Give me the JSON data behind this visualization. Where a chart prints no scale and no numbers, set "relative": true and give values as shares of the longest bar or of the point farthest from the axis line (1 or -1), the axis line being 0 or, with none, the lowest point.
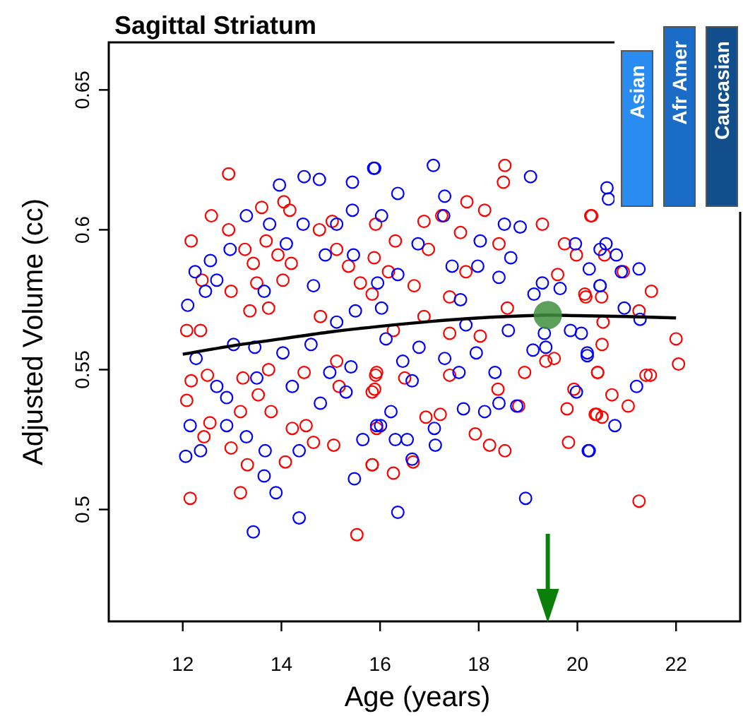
{
  "chart_data": [
    {
      "type": "scatter",
      "title": "Sagittal Striatum",
      "xlabel": "Age (years)",
      "ylabel": "Adjusted Volume (cc)",
      "xlim": [
        10.5,
        23.3
      ],
      "ylim": [
        0.46,
        0.667
      ],
      "xticks": [
        12,
        14,
        16,
        18,
        20,
        22
      ],
      "yticks": [
        0.5,
        0.55,
        0.6,
        0.65
      ],
      "grid": false,
      "marker": "circle",
      "series": [
        {
          "color": "#ff0000",
          "x": [
            12.93,
            12.58,
            12.17,
            13.6,
            14.05,
            14.17,
            12.93,
            13.69,
            13.26,
            13.43,
            13.93,
            14.2,
            15.03,
            14.77,
            12.39,
            13.5,
            14.03,
            15.12,
            15.36,
            15.6,
            12.98,
            12.08,
            12.36,
            13.36,
            13.74,
            14.79,
            12.17,
            12.5,
            13.22,
            13.74,
            14.46,
            15.12,
            15.93,
            12.08,
            12.55,
            13.17,
            13.79,
            14.22,
            14.5,
            12.43,
            12.98,
            13.31,
            13.17,
            14.08,
            14.65,
            15.06,
            15.84,
            15.53,
            12.15,
            13.53,
            15.17,
            15.89,
            18.53,
            18.5,
            17.76,
            17.25,
            18.12,
            16.89,
            15.91,
            19.29,
            20.27,
            17.63,
            16.31,
            18.41,
            19.74,
            19.98,
            16.98,
            15.88,
            16.17,
            17.74,
            19.6,
            15.84,
            16.69,
            17.41,
            18.58,
            20.17,
            16.89,
            16.27,
            17.41,
            18.03,
            19.36,
            19.53,
            18.93,
            15.91,
            16.5,
            17.41,
            18.39,
            20.41,
            15.84,
            16.93,
            17.22,
            18.81,
            19.93,
            19.79,
            20.36,
            15.93,
            17.93,
            18.22,
            18.53,
            19.82,
            15.84,
            16.27,
            16.67,
            20.29,
            20.55,
            20.93,
            21.5,
            20.49,
            20.15,
            21.25,
            20.52,
            22.0,
            22.05,
            20.5,
            20.41,
            21.39,
            21.48,
            20.7,
            21.03,
            20.39,
            20.5,
            21.25
          ],
          "values": [
            0.62,
            0.605,
            0.596,
            0.608,
            0.61,
            0.607,
            0.6,
            0.596,
            0.593,
            0.588,
            0.591,
            0.588,
            0.603,
            0.6,
            0.582,
            0.581,
            0.582,
            0.593,
            0.587,
            0.581,
            0.578,
            0.564,
            0.564,
            0.571,
            0.572,
            0.569,
            0.546,
            0.548,
            0.547,
            0.55,
            0.549,
            0.553,
            0.549,
            0.539,
            0.531,
            0.535,
            0.535,
            0.529,
            0.53,
            0.526,
            0.522,
            0.516,
            0.506,
            0.517,
            0.524,
            0.523,
            0.516,
            0.491,
            0.504,
            0.541,
            0.544,
            0.543,
            0.623,
            0.617,
            0.61,
            0.605,
            0.607,
            0.603,
            0.602,
            0.602,
            0.605,
            0.599,
            0.596,
            0.595,
            0.595,
            0.591,
            0.593,
            0.59,
            0.585,
            0.585,
            0.584,
            0.577,
            0.58,
            0.576,
            0.572,
            0.576,
            0.569,
            0.564,
            0.563,
            0.562,
            0.553,
            0.554,
            0.549,
            0.548,
            0.547,
            0.548,
            0.543,
            0.549,
            0.542,
            0.533,
            0.534,
            0.537,
            0.543,
            0.536,
            0.534,
            0.529,
            0.527,
            0.523,
            0.521,
            0.524,
            0.516,
            0.513,
            0.517,
            0.605,
            0.591,
            0.585,
            0.578,
            0.576,
            0.577,
            0.571,
            0.567,
            0.561,
            0.552,
            0.559,
            0.549,
            0.548,
            0.548,
            0.541,
            0.537,
            0.534,
            0.533,
            0.503
          ]
        },
        {
          "color": "#0000ff",
          "x": [
            14.46,
            14.77,
            13.96,
            15.44,
            15.87,
            13.29,
            13.76,
            14.44,
            15.12,
            15.44,
            14.1,
            12.96,
            12.56,
            12.25,
            12.69,
            14.89,
            15.46,
            12.46,
            12.1,
            13.65,
            14.65,
            15.12,
            15.5,
            13.03,
            13.46,
            12.27,
            14.03,
            14.6,
            15.41,
            13.5,
            14.22,
            14.98,
            15.31,
            12.69,
            12.89,
            12.15,
            12.89,
            13.29,
            13.67,
            14.36,
            14.79,
            15.65,
            12.06,
            12.36,
            13.65,
            13.89,
            15.48,
            14.36,
            13.43,
            15.93,
            17.08,
            15.89,
            19.05,
            16.36,
            17.31,
            16.03,
            17.29,
            18.52,
            18.84,
            18.03,
            16.77,
            19.96,
            18.65,
            17.98,
            17.46,
            16.36,
            15.95,
            18.41,
            19.29,
            19.65,
            20.46,
            17.63,
            16.03,
            19.12,
            17.74,
            18.6,
            19.33,
            19.86,
            20.08,
            16.12,
            16.79,
            17.31,
            17.95,
            19.1,
            19.36,
            20.2,
            16.46,
            18.33,
            16.65,
            17.6,
            18.41,
            16.22,
            17.69,
            18.12,
            18.77,
            19.98,
            17.1,
            16.01,
            16.55,
            16.31,
            17.12,
            20.22,
            16.65,
            18.95,
            16.36,
            20.6,
            20.63,
            20.58,
            20.46,
            20.79,
            20.24,
            20.89,
            21.25,
            20.46,
            20.95,
            21.27,
            20.2,
            21.2,
            20.76,
            20.24
          ],
          "values": [
            0.619,
            0.618,
            0.616,
            0.617,
            0.622,
            0.605,
            0.602,
            0.602,
            0.602,
            0.607,
            0.595,
            0.593,
            0.589,
            0.585,
            0.582,
            0.591,
            0.591,
            0.578,
            0.573,
            0.578,
            0.58,
            0.567,
            0.571,
            0.559,
            0.558,
            0.554,
            0.556,
            0.559,
            0.551,
            0.547,
            0.544,
            0.549,
            0.542,
            0.544,
            0.54,
            0.53,
            0.53,
            0.526,
            0.521,
            0.521,
            0.538,
            0.525,
            0.519,
            0.521,
            0.512,
            0.506,
            0.511,
            0.497,
            0.492,
            0.53,
            0.623,
            0.622,
            0.619,
            0.613,
            0.612,
            0.605,
            0.605,
            0.602,
            0.601,
            0.596,
            0.595,
            0.595,
            0.59,
            0.587,
            0.587,
            0.584,
            0.581,
            0.583,
            0.581,
            0.579,
            0.58,
            0.575,
            0.572,
            0.577,
            0.566,
            0.564,
            0.563,
            0.564,
            0.563,
            0.561,
            0.558,
            0.554,
            0.556,
            0.557,
            0.558,
            0.555,
            0.553,
            0.549,
            0.546,
            0.549,
            0.538,
            0.535,
            0.536,
            0.535,
            0.537,
            0.542,
            0.529,
            0.53,
            0.525,
            0.525,
            0.523,
            0.521,
            0.518,
            0.504,
            0.499,
            0.615,
            0.611,
            0.595,
            0.593,
            0.591,
            0.586,
            0.585,
            0.586,
            0.58,
            0.572,
            0.568,
            0.556,
            0.544,
            0.53,
            0.521
          ]
        },
        {
          "type": "line",
          "color": "#000000",
          "marker": "none",
          "x": [
            12,
            13,
            14,
            15,
            16,
            17,
            18,
            19,
            19.4,
            20,
            21,
            22
          ],
          "values": [
            0.5555,
            0.5585,
            0.561,
            0.5635,
            0.5655,
            0.5672,
            0.5685,
            0.5693,
            0.5695,
            0.5693,
            0.569,
            0.5685
          ]
        },
        {
          "type": "bubble",
          "color": "#3f8f3f",
          "x": [
            19.4
          ],
          "values": [
            0.5695
          ],
          "sizes": [
            1
          ]
        }
      ]
    },
    {
      "type": "bar",
      "relative": true,
      "categories": [
        "Asian",
        "Afr Amer",
        "Caucasian"
      ],
      "values": [
        0.866,
        1,
        1
      ],
      "colors": [
        "#2a8cf0",
        "#1b6cc6",
        "#124e8c"
      ]
    }
  ]
}
